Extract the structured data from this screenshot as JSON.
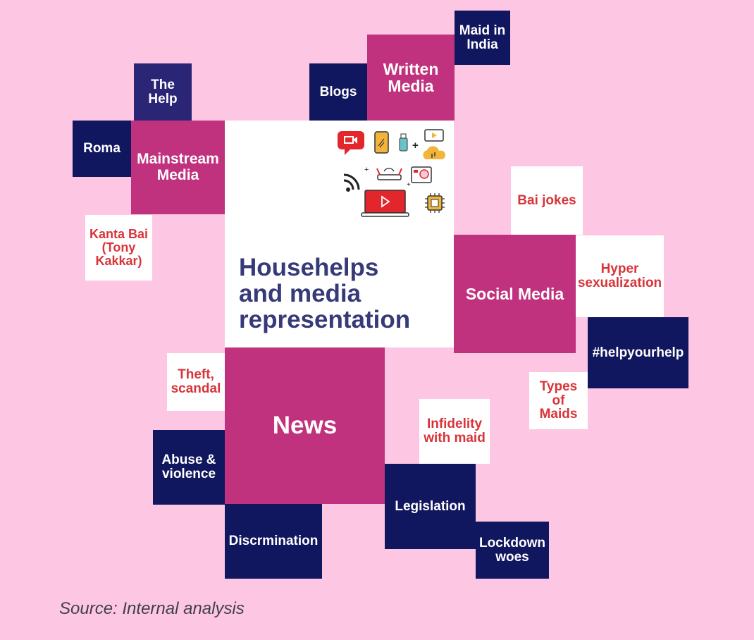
{
  "center": {
    "title": "Househelps\nand media\nrepresentation"
  },
  "nodes": {
    "maid_in_india": "Maid in India",
    "written_media": "Written Media",
    "blogs": "Blogs",
    "the_help": "The Help",
    "roma": "Roma",
    "mainstream_media": "Mainstream Media",
    "kanta_bai": "Kanta Bai (Tony Kakkar)",
    "bai_jokes": "Bai jokes",
    "social_media": "Social Media",
    "hyper_sexualization": "Hyper sexualization",
    "helpyourhelp": "#helpyourhelp",
    "types_of_maids": "Types of Maids",
    "theft_scandal": "Theft, scandal",
    "news": "News",
    "infidelity": "Infidelity with maid",
    "abuse_violence": "Abuse & violence",
    "legislation": "Legislation",
    "discrimination": "Discrmination",
    "lockdown_woes": "Lockdown woes"
  },
  "source": "Source: Internal analysis",
  "colors": {
    "background": "#fdc7e3",
    "navy": "#11175f",
    "magenta": "#c0327d",
    "white": "#ffffff",
    "red_text": "#d8343a",
    "title": "#363a78"
  },
  "icons": [
    "video-call-icon",
    "smartphone-icon",
    "usb-drive-icon",
    "play-window-icon",
    "cloud-icon",
    "wifi-icon",
    "router-icon",
    "camera-icon",
    "laptop-video-icon",
    "chip-icon"
  ]
}
